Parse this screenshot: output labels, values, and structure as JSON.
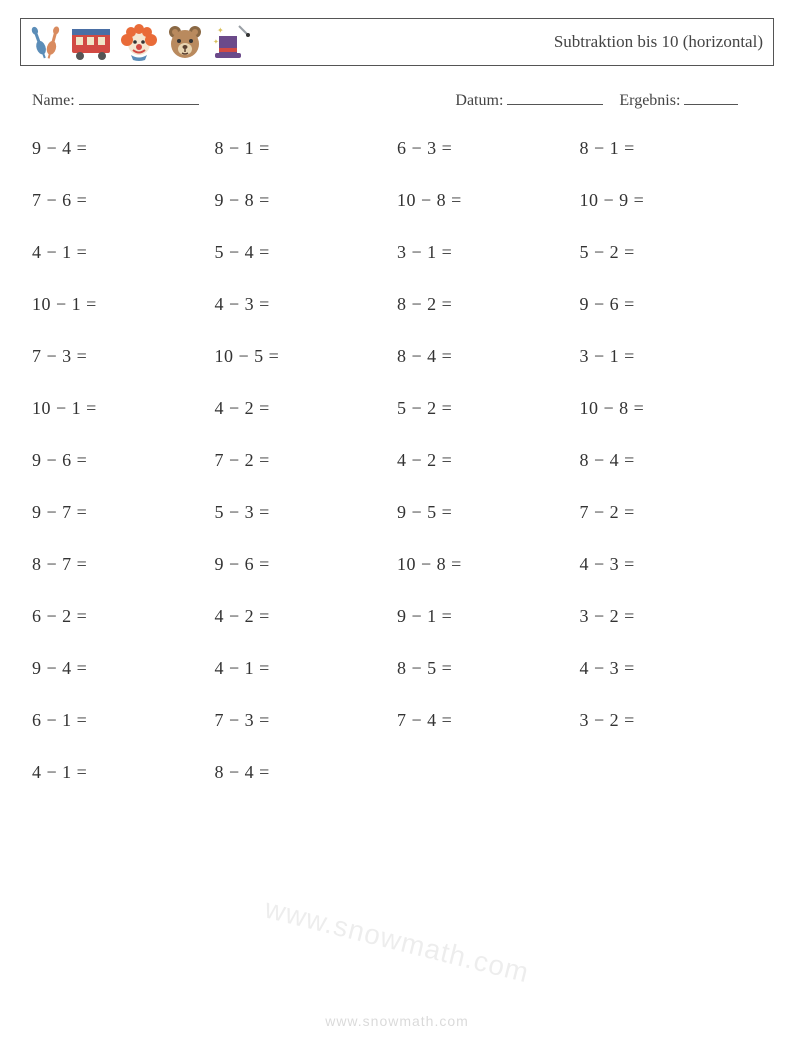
{
  "header": {
    "title": "Subtraktion bis 10 (horizontal)",
    "icon_colors": {
      "pin1": "#5b8db8",
      "pin2": "#d98b5f",
      "train_body": "#d24a43",
      "train_trim": "#4a6fa5",
      "clown_hair": "#e96b38",
      "clown_face": "#f4e6d0",
      "clown_nose": "#d24a43",
      "bear_face": "#b98a5e",
      "bear_ear": "#8a6844",
      "hat": "#6b4a8a",
      "hat_band": "#d24a43",
      "wand": "#9aa0a6"
    }
  },
  "info": {
    "name_label": "Name:",
    "date_label": "Datum:",
    "result_label": "Ergebnis:"
  },
  "grid": {
    "columns": 4,
    "rows": [
      [
        "9 − 4 =",
        "8 − 1 =",
        "6 − 3 =",
        "8 − 1 ="
      ],
      [
        "7 − 6 =",
        "9 − 8 =",
        "10 − 8 =",
        "10 − 9 ="
      ],
      [
        "4 − 1 =",
        "5 − 4 =",
        "3 − 1 =",
        "5 − 2 ="
      ],
      [
        "10 − 1 =",
        "4 − 3 =",
        "8 − 2 =",
        "9 − 6 ="
      ],
      [
        "7 − 3 =",
        "10 − 5 =",
        "8 − 4 =",
        "3 − 1 ="
      ],
      [
        "10 − 1 =",
        "4 − 2 =",
        "5 − 2 =",
        "10 − 8 ="
      ],
      [
        "9 − 6 =",
        "7 − 2 =",
        "4 − 2 =",
        "8 − 4 ="
      ],
      [
        "9 − 7 =",
        "5 − 3 =",
        "9 − 5 =",
        "7 − 2 ="
      ],
      [
        "8 − 7 =",
        "9 − 6 =",
        "10 − 8 =",
        "4 − 3 ="
      ],
      [
        "6 − 2 =",
        "4 − 2 =",
        "9 − 1 =",
        "3 − 2 ="
      ],
      [
        "9 − 4 =",
        "4 − 1 =",
        "8 − 5 =",
        "4 − 3 ="
      ],
      [
        "6 − 1 =",
        "7 − 3 =",
        "7 − 4 =",
        "3 − 2 ="
      ],
      [
        "4 − 1 =",
        "8 − 4 =",
        "",
        ""
      ]
    ],
    "cell_fontsize": 18,
    "row_gap": 31,
    "text_color": "#333333"
  },
  "watermark": "www.snowmath.com",
  "footer": "www.snowmath.com"
}
